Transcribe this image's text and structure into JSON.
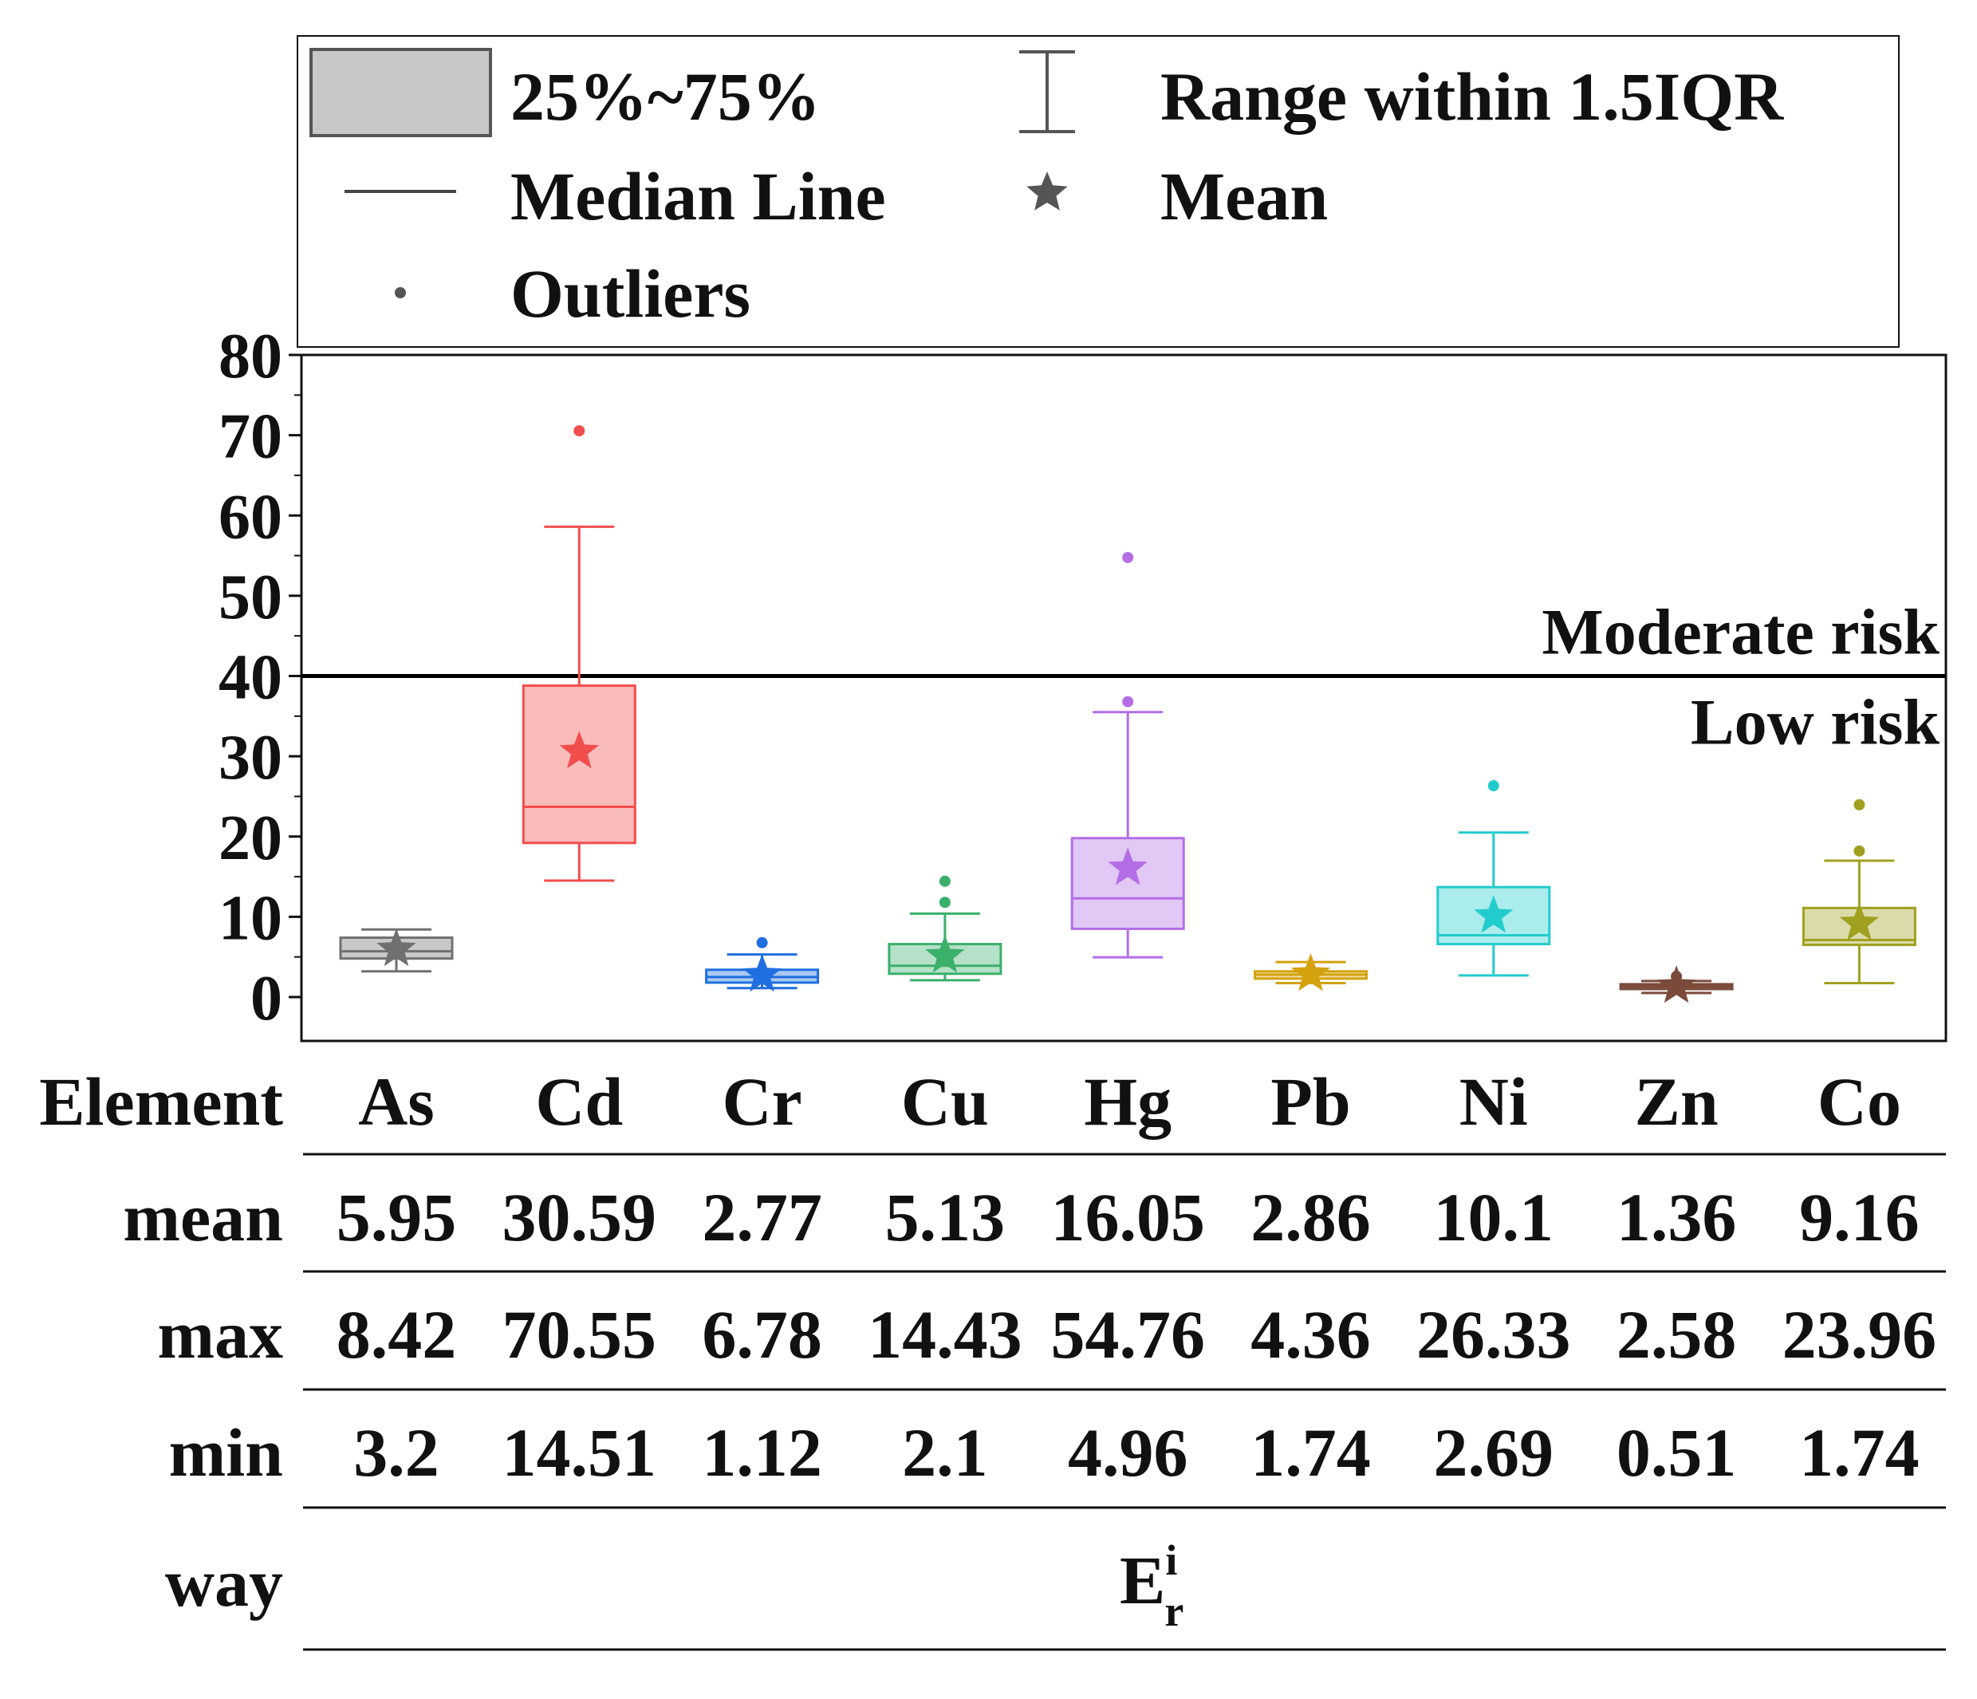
{
  "chart_data": {
    "type": "box",
    "ylabel": "",
    "ylim": [
      -5,
      80
    ],
    "yticks": [
      0,
      10,
      20,
      30,
      40,
      50,
      60,
      70,
      80
    ],
    "legend": {
      "box": "25%~75%",
      "whisker": "Range within 1.5IQR",
      "median": "Median Line",
      "mean": "Mean",
      "outliers": "Outliers"
    },
    "threshold": {
      "value": 40,
      "label_above": "Moderate risk",
      "label_below": "Low risk"
    },
    "series": [
      {
        "name": "As",
        "color": "#707070",
        "q1": 4.8,
        "q3": 7.4,
        "median": 5.7,
        "mean": 5.95,
        "wlow": 3.2,
        "whigh": 8.42,
        "outliers": []
      },
      {
        "name": "Cd",
        "color": "#f24d4d",
        "q1": 19.2,
        "q3": 38.8,
        "median": 23.7,
        "mean": 30.59,
        "wlow": 14.51,
        "whigh": 58.6,
        "outliers": [
          70.55
        ]
      },
      {
        "name": "Cr",
        "color": "#1f6fe0",
        "q1": 1.8,
        "q3": 3.4,
        "median": 2.5,
        "mean": 2.77,
        "wlow": 1.12,
        "whigh": 5.3,
        "outliers": [
          6.78
        ]
      },
      {
        "name": "Cu",
        "color": "#3bb06b",
        "q1": 2.9,
        "q3": 6.6,
        "median": 3.9,
        "mean": 5.13,
        "wlow": 2.1,
        "whigh": 10.4,
        "outliers": [
          11.8,
          14.43
        ]
      },
      {
        "name": "Hg",
        "color": "#b36ee6",
        "q1": 8.5,
        "q3": 19.8,
        "median": 12.3,
        "mean": 16.05,
        "wlow": 4.96,
        "whigh": 35.5,
        "outliers": [
          36.8,
          54.76
        ]
      },
      {
        "name": "Pb",
        "color": "#d4a20e",
        "q1": 2.3,
        "q3": 3.2,
        "median": 2.8,
        "mean": 2.86,
        "wlow": 1.74,
        "whigh": 4.36,
        "outliers": []
      },
      {
        "name": "Ni",
        "color": "#22cccc",
        "q1": 6.6,
        "q3": 13.7,
        "median": 7.7,
        "mean": 10.1,
        "wlow": 2.69,
        "whigh": 20.5,
        "outliers": [
          26.33
        ]
      },
      {
        "name": "Zn",
        "color": "#7a4a3a",
        "q1": 1.0,
        "q3": 1.6,
        "median": 1.3,
        "mean": 1.36,
        "wlow": 0.51,
        "whigh": 2.0,
        "outliers": [
          2.58
        ]
      },
      {
        "name": "Co",
        "color": "#a0a020",
        "q1": 6.5,
        "q3": 11.1,
        "median": 7.1,
        "mean": 9.16,
        "wlow": 1.74,
        "whigh": 17.0,
        "outliers": [
          18.2,
          23.96
        ]
      }
    ]
  },
  "table": {
    "header_label": "Element",
    "rows": [
      {
        "label": "mean",
        "values": [
          "5.95",
          "30.59",
          "2.77",
          "5.13",
          "16.05",
          "2.86",
          "10.1",
          "1.36",
          "9.16"
        ]
      },
      {
        "label": "max",
        "values": [
          "8.42",
          "70.55",
          "6.78",
          "14.43",
          "54.76",
          "4.36",
          "26.33",
          "2.58",
          "23.96"
        ]
      },
      {
        "label": "min",
        "values": [
          "3.2",
          "14.51",
          "1.12",
          "2.1",
          "4.96",
          "1.74",
          "2.69",
          "0.51",
          "1.74"
        ]
      }
    ],
    "way": {
      "label": "way",
      "symbol": "E",
      "superscript": "i",
      "subscript": "r"
    }
  }
}
